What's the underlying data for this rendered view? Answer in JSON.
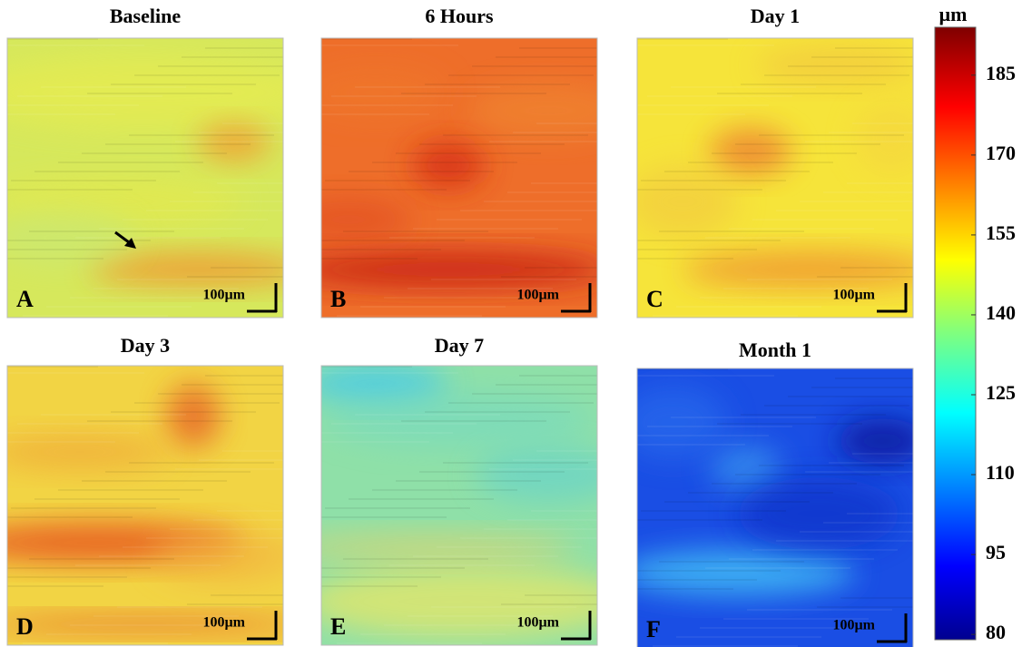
{
  "panels": [
    {
      "title": "Baseline",
      "letter": "A",
      "scale_label": "100µm"
    },
    {
      "title": "6 Hours",
      "letter": "B",
      "scale_label": "100µm"
    },
    {
      "title": "Day 1",
      "letter": "C",
      "scale_label": "100µm"
    },
    {
      "title": "Day 3",
      "letter": "D",
      "scale_label": "100µm"
    },
    {
      "title": "Day 7",
      "letter": "E",
      "scale_label": "100µm"
    },
    {
      "title": "Month 1",
      "letter": "F",
      "scale_label": "100µm"
    }
  ],
  "colorbar": {
    "label": "µm",
    "lim": [
      79,
      194
    ],
    "ticks": [
      80,
      95,
      110,
      125,
      140,
      155,
      170,
      185
    ]
  }
}
